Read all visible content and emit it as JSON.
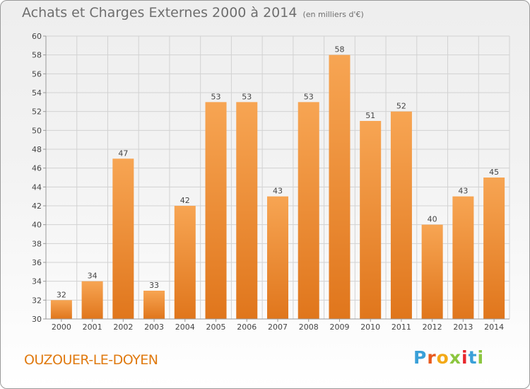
{
  "header": {
    "title": "Achats et Charges Externes 2000 à 2014",
    "subtitle": "(en milliers d'€)"
  },
  "location_label": "OUZOUER-LE-DOYEN",
  "logo": {
    "letters": [
      "P",
      "r",
      "o",
      "x",
      "i",
      "t",
      "i"
    ],
    "colors": [
      "#3aa0d8",
      "#e85a1e",
      "#f3a916",
      "#8cc63f",
      "#e8272d",
      "#3aa0d8",
      "#8cc63f"
    ]
  },
  "colors": {
    "bar_top": "#f7a553",
    "bar_bottom": "#e0761c",
    "grid": "#d2d2d2",
    "axis_text": "#444444"
  },
  "chart_data": {
    "type": "bar",
    "categories": [
      "2000",
      "2001",
      "2002",
      "2003",
      "2004",
      "2005",
      "2006",
      "2007",
      "2008",
      "2009",
      "2010",
      "2011",
      "2012",
      "2013",
      "2014"
    ],
    "values": [
      32,
      34,
      47,
      33,
      42,
      53,
      53,
      43,
      53,
      58,
      51,
      52,
      40,
      43,
      45
    ],
    "title": "Achats et Charges Externes 2000 à 2014",
    "subtitle": "(en milliers d'€)",
    "ylim": [
      30,
      60
    ],
    "yticks": [
      30,
      32,
      34,
      36,
      38,
      40,
      42,
      44,
      46,
      48,
      50,
      52,
      54,
      56,
      58,
      60
    ],
    "grid": true,
    "data_labels": true
  }
}
